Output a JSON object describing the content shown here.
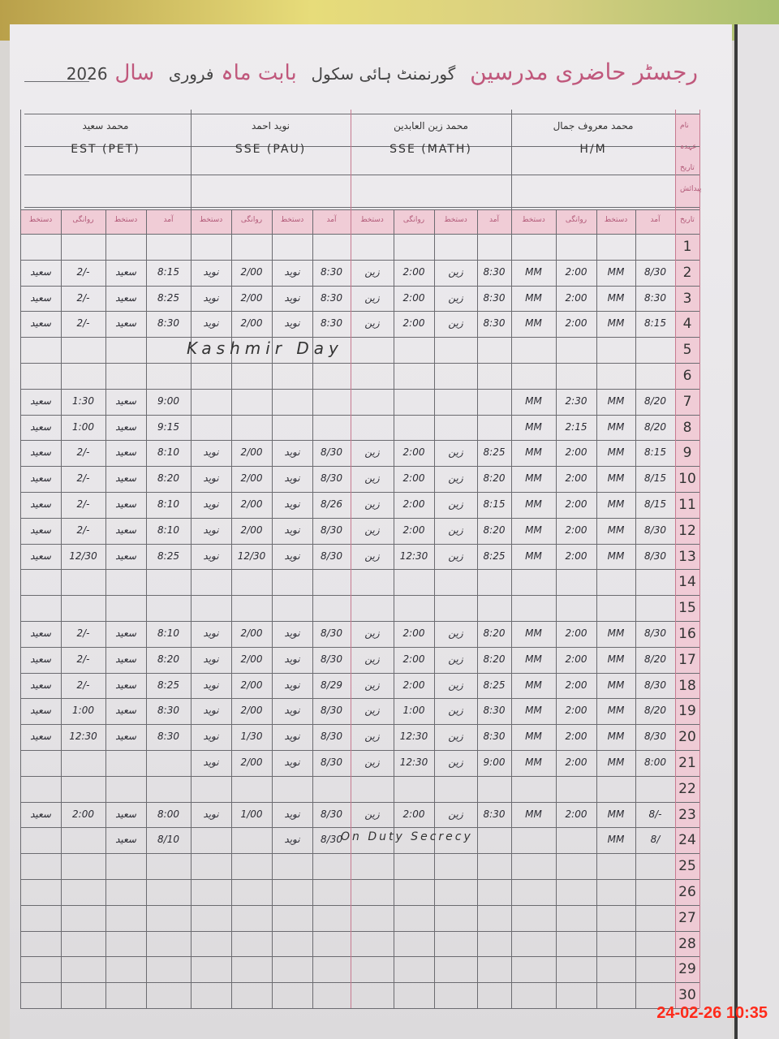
{
  "register": {
    "title": "رجسٹر حاضری مدرسین",
    "school": "گورنمنٹ ہائی سکول",
    "month_label": "بابت ماہ",
    "month": "فروری",
    "year_label": "سال",
    "year": "2026"
  },
  "teachers": [
    {
      "name": "محمد سعید",
      "post": "EST (PET)"
    },
    {
      "name": "نوید احمد",
      "post": "SSE (PAU)"
    },
    {
      "name": "محمد زین العابدین",
      "post": "SSE (MATH)"
    },
    {
      "name": "محمد معروف جمال",
      "post": "H/M"
    }
  ],
  "column_headers": [
    "دستخط",
    "روانگی",
    "دستخط",
    "آمد"
  ],
  "day_header": "تاریخ",
  "side_labels": [
    "نام",
    "عہدہ",
    "تاریخ",
    "پیدائش"
  ],
  "rows": [
    {
      "day": "1",
      "cells": []
    },
    {
      "day": "2",
      "cells": [
        "سعید",
        "2/-",
        "سعید",
        "8:15",
        "نوید",
        "2/00",
        "نوید",
        "8:30",
        "زین",
        "2:00",
        "زین",
        "8:30",
        "MM",
        "2:00",
        "MM",
        "8/30"
      ]
    },
    {
      "day": "3",
      "cells": [
        "سعید",
        "2/-",
        "سعید",
        "8:25",
        "نوید",
        "2/00",
        "نوید",
        "8:30",
        "زین",
        "2:00",
        "زین",
        "8:30",
        "MM",
        "2:00",
        "MM",
        "8:30"
      ]
    },
    {
      "day": "4",
      "cells": [
        "سعید",
        "2/-",
        "سعید",
        "8:30",
        "نوید",
        "2/00",
        "نوید",
        "8:30",
        "زین",
        "2:00",
        "زین",
        "8:30",
        "MM",
        "2:00",
        "MM",
        "8:15"
      ]
    },
    {
      "day": "5",
      "note": "Kashmir Day",
      "cells": []
    },
    {
      "day": "6",
      "cells": []
    },
    {
      "day": "7",
      "cells": [
        "سعید",
        "1:30",
        "سعید",
        "9:00",
        "",
        "",
        "",
        "",
        "",
        "",
        "",
        "",
        "MM",
        "2:30",
        "MM",
        "8/20"
      ]
    },
    {
      "day": "8",
      "cells": [
        "سعید",
        "1:00",
        "سعید",
        "9:15",
        "",
        "",
        "",
        "",
        "",
        "",
        "",
        "",
        "MM",
        "2:15",
        "MM",
        "8/20"
      ]
    },
    {
      "day": "9",
      "cells": [
        "سعید",
        "2/-",
        "سعید",
        "8:10",
        "نوید",
        "2/00",
        "نوید",
        "8/30",
        "زین",
        "2:00",
        "زین",
        "8:25",
        "MM",
        "2:00",
        "MM",
        "8:15"
      ]
    },
    {
      "day": "10",
      "cells": [
        "سعید",
        "2/-",
        "سعید",
        "8:20",
        "نوید",
        "2/00",
        "نوید",
        "8/30",
        "زین",
        "2:00",
        "زین",
        "8:20",
        "MM",
        "2:00",
        "MM",
        "8/15"
      ]
    },
    {
      "day": "11",
      "cells": [
        "سعید",
        "2/-",
        "سعید",
        "8:10",
        "نوید",
        "2/00",
        "نوید",
        "8/26",
        "زین",
        "2:00",
        "زین",
        "8:15",
        "MM",
        "2:00",
        "MM",
        "8/15"
      ]
    },
    {
      "day": "12",
      "cells": [
        "سعید",
        "2/-",
        "سعید",
        "8:10",
        "نوید",
        "2/00",
        "نوید",
        "8/30",
        "زین",
        "2:00",
        "زین",
        "8:20",
        "MM",
        "2:00",
        "MM",
        "8/30"
      ]
    },
    {
      "day": "13",
      "cells": [
        "سعید",
        "12/30",
        "سعید",
        "8:25",
        "نوید",
        "12/30",
        "نوید",
        "8/30",
        "زین",
        "12:30",
        "زین",
        "8:25",
        "MM",
        "2:00",
        "MM",
        "8/30"
      ]
    },
    {
      "day": "14",
      "cells": []
    },
    {
      "day": "15",
      "cells": []
    },
    {
      "day": "16",
      "cells": [
        "سعید",
        "2/-",
        "سعید",
        "8:10",
        "نوید",
        "2/00",
        "نوید",
        "8/30",
        "زین",
        "2:00",
        "زین",
        "8:20",
        "MM",
        "2:00",
        "MM",
        "8/30"
      ]
    },
    {
      "day": "17",
      "cells": [
        "سعید",
        "2/-",
        "سعید",
        "8:20",
        "نوید",
        "2/00",
        "نوید",
        "8/30",
        "زین",
        "2:00",
        "زین",
        "8:20",
        "MM",
        "2:00",
        "MM",
        "8/20"
      ]
    },
    {
      "day": "18",
      "cells": [
        "سعید",
        "2/-",
        "سعید",
        "8:25",
        "نوید",
        "2/00",
        "نوید",
        "8/29",
        "زین",
        "2:00",
        "زین",
        "8:25",
        "MM",
        "2:00",
        "MM",
        "8/30"
      ]
    },
    {
      "day": "19",
      "cells": [
        "سعید",
        "1:00",
        "سعید",
        "8:30",
        "نوید",
        "2/00",
        "نوید",
        "8/30",
        "زین",
        "1:00",
        "زین",
        "8:30",
        "MM",
        "2:00",
        "MM",
        "8/20"
      ]
    },
    {
      "day": "20",
      "cells": [
        "سعید",
        "12:30",
        "سعید",
        "8:30",
        "نوید",
        "1/30",
        "نوید",
        "8/30",
        "زین",
        "12:30",
        "زین",
        "8:30",
        "MM",
        "2:00",
        "MM",
        "8/30"
      ]
    },
    {
      "day": "21",
      "cells": [
        "",
        "",
        "",
        "",
        "نوید",
        "2/00",
        "نوید",
        "8/30",
        "زین",
        "12:30",
        "زین",
        "9:00",
        "MM",
        "2:00",
        "MM",
        "8:00"
      ]
    },
    {
      "day": "22",
      "cells": []
    },
    {
      "day": "23",
      "cells": [
        "سعید",
        "2:00",
        "سعید",
        "8:00",
        "نوید",
        "1/00",
        "نوید",
        "8/30",
        "زین",
        "2:00",
        "زین",
        "8:30",
        "MM",
        "2:00",
        "MM",
        "8/-"
      ]
    },
    {
      "day": "24",
      "note24": "On Duty Secrecy",
      "cells": [
        "",
        "",
        "سعید",
        "8/10",
        "",
        "",
        "نوید",
        "8/30",
        "",
        "",
        "",
        "",
        "",
        "",
        "MM",
        "8/"
      ]
    },
    {
      "day": "25",
      "cells": []
    },
    {
      "day": "26",
      "cells": []
    },
    {
      "day": "27",
      "cells": []
    },
    {
      "day": "28",
      "cells": []
    },
    {
      "day": "29",
      "cells": []
    },
    {
      "day": "30",
      "cells": []
    }
  ],
  "timestamp": "24-02-26 10:35",
  "colors": {
    "pink_margin": "#f1c7d2",
    "ink": "#2b2b33",
    "header_ink": "#c0587c",
    "timestamp": "#ff2a1a"
  }
}
